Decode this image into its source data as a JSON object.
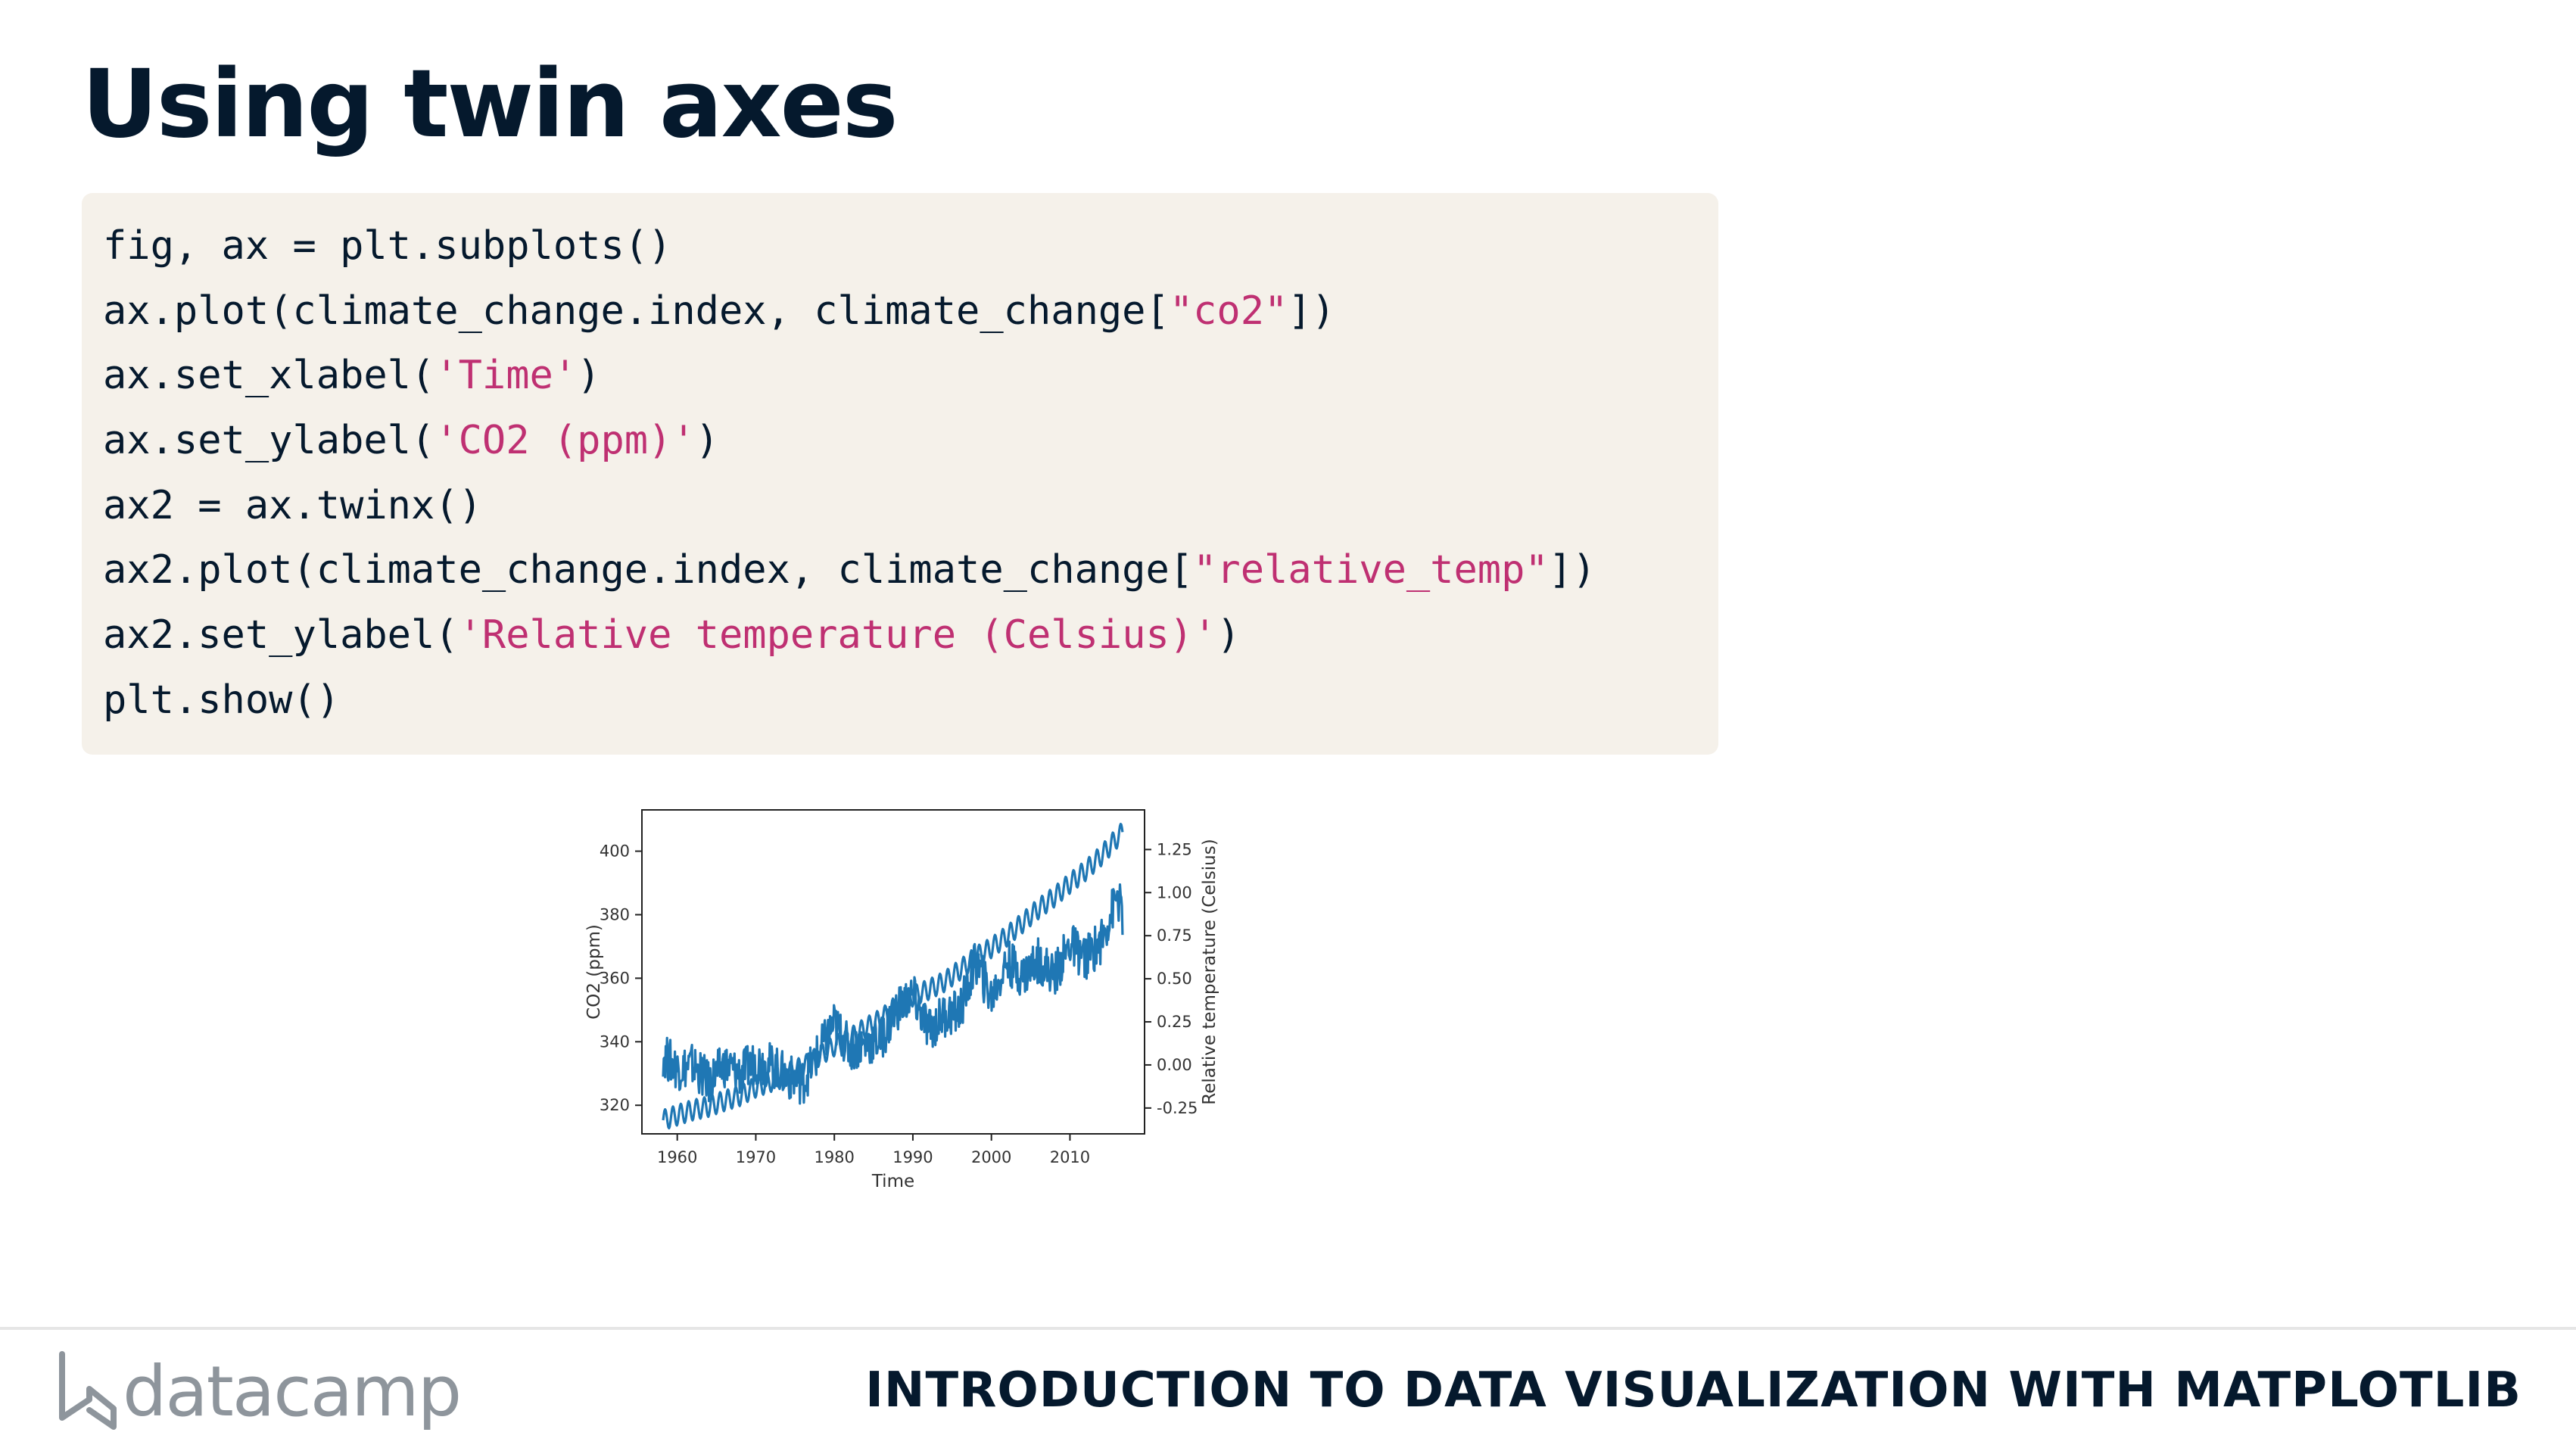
{
  "slide": {
    "title": "Using twin axes"
  },
  "code": {
    "lines": [
      [
        {
          "t": "fig, ax = plt.subplots()"
        }
      ],
      [
        {
          "t": "ax.plot(climate_change.index, climate_change["
        },
        {
          "t": "\"co2\"",
          "s": 1
        },
        {
          "t": "])"
        }
      ],
      [
        {
          "t": "ax.set_xlabel("
        },
        {
          "t": "'Time'",
          "s": 1
        },
        {
          "t": ")"
        }
      ],
      [
        {
          "t": "ax.set_ylabel("
        },
        {
          "t": "'CO2 (ppm)'",
          "s": 1
        },
        {
          "t": ")"
        }
      ],
      [
        {
          "t": "ax2 = ax.twinx()"
        }
      ],
      [
        {
          "t": "ax2.plot(climate_change.index, climate_change["
        },
        {
          "t": "\"relative_temp\"",
          "s": 1
        },
        {
          "t": "])"
        }
      ],
      [
        {
          "t": "ax2.set_ylabel("
        },
        {
          "t": "'Relative temperature (Celsius)'",
          "s": 1
        },
        {
          "t": ")"
        }
      ],
      [
        {
          "t": "plt.show()"
        }
      ]
    ],
    "string_color": "#bf3072"
  },
  "chart_data": {
    "type": "line",
    "xlabel": "Time",
    "ylabel": "CO2 (ppm)",
    "y2label": "Relative temperature (Celsius)",
    "xlim": [
      1955.5,
      2019.5
    ],
    "ylim": [
      311,
      413
    ],
    "y2lim": [
      -0.4,
      1.48
    ],
    "xticks": [
      1960,
      1970,
      1980,
      1990,
      2000,
      2010
    ],
    "yticks": [
      320,
      340,
      360,
      380,
      400
    ],
    "y2ticks": [
      "-0.25",
      "0.00",
      "0.25",
      "0.50",
      "0.75",
      "1.00",
      "1.25"
    ],
    "y2tick_values": [
      -0.25,
      0.0,
      0.25,
      0.5,
      0.75,
      1.0,
      1.25
    ],
    "series": [
      {
        "axis": "left",
        "color": "#1f77b4",
        "x": [
          1958.2,
          1960,
          1962,
          1964,
          1966,
          1968,
          1970,
          1972,
          1974,
          1976,
          1978,
          1980,
          1982,
          1984,
          1986,
          1988,
          1990,
          1992,
          1994,
          1996,
          1998,
          2000,
          2002,
          2004,
          2006,
          2008,
          2010,
          2012,
          2014,
          2016,
          2016.7
        ],
        "y": [
          315.3,
          316.9,
          318.5,
          319.6,
          321.4,
          323.0,
          325.7,
          327.5,
          330.2,
          332.1,
          335.4,
          338.7,
          341.1,
          344.4,
          347.2,
          351.6,
          354.4,
          356.4,
          358.9,
          362.6,
          366.7,
          369.6,
          373.3,
          377.5,
          381.9,
          385.6,
          389.9,
          393.9,
          398.6,
          404.2,
          406.0
        ],
        "seasonal_amplitude": 3.2
      },
      {
        "axis": "right",
        "color": "#1f77b4",
        "x": [
          1958.2,
          1960,
          1962,
          1964,
          1966,
          1968,
          1970,
          1972,
          1974,
          1976,
          1978,
          1980,
          1982,
          1984,
          1986,
          1988,
          1990,
          1992,
          1994,
          1996,
          1998,
          2000,
          2002,
          2004,
          2006,
          2008,
          2010,
          2012,
          2014,
          2016,
          2016.7
        ],
        "y": [
          0.06,
          -0.02,
          0.0,
          -0.1,
          0.0,
          -0.05,
          0.02,
          0.0,
          -0.07,
          -0.1,
          0.07,
          0.24,
          0.09,
          0.12,
          0.15,
          0.33,
          0.4,
          0.2,
          0.29,
          0.31,
          0.6,
          0.39,
          0.6,
          0.52,
          0.61,
          0.52,
          0.7,
          0.62,
          0.72,
          0.98,
          0.87
        ],
        "noise_amplitude": 0.13
      }
    ]
  },
  "footer": {
    "brand": "datacamp",
    "course_title": "INTRODUCTION TO DATA VISUALIZATION WITH MATPLOTLIB",
    "brand_color": "#8e959c"
  }
}
